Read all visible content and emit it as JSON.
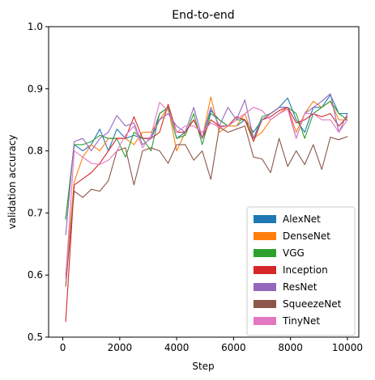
{
  "chart_data": {
    "type": "line",
    "title": "End-to-end",
    "xlabel": "Step",
    "ylabel": "validation accuracy",
    "xlim": [
      -500,
      10400
    ],
    "ylim": [
      0.5,
      1.0
    ],
    "xticks": [
      0,
      2000,
      4000,
      6000,
      8000,
      10000
    ],
    "yticks": [
      0.5,
      0.6,
      0.7,
      0.8,
      0.9,
      1.0
    ],
    "ytick_labels": [
      "0.5",
      "0.6",
      "0.7",
      "0.8",
      "0.9",
      "1.0"
    ],
    "grid": false,
    "legend_position": "lower-right",
    "x": [
      100,
      400,
      700,
      1000,
      1300,
      1600,
      1900,
      2200,
      2500,
      2800,
      3100,
      3400,
      3700,
      4000,
      4300,
      4600,
      4900,
      5200,
      5500,
      5800,
      6100,
      6400,
      6700,
      7000,
      7300,
      7600,
      7900,
      8200,
      8500,
      8800,
      9100,
      9400,
      9700,
      10000
    ],
    "series": [
      {
        "name": "AlexNet",
        "color": "#1f77b4",
        "values": [
          0.69,
          0.81,
          0.8,
          0.81,
          0.835,
          0.8,
          0.835,
          0.82,
          0.825,
          0.82,
          0.82,
          0.86,
          0.87,
          0.82,
          0.83,
          0.85,
          0.82,
          0.865,
          0.85,
          0.84,
          0.84,
          0.85,
          0.83,
          0.85,
          0.86,
          0.87,
          0.885,
          0.85,
          0.83,
          0.87,
          0.87,
          0.89,
          0.86,
          0.86
        ]
      },
      {
        "name": "DenseNet",
        "color": "#ff7f0e",
        "values": [
          0.6,
          0.75,
          0.79,
          0.81,
          0.8,
          0.82,
          0.82,
          0.82,
          0.81,
          0.83,
          0.83,
          0.85,
          0.87,
          0.8,
          0.83,
          0.85,
          0.82,
          0.887,
          0.83,
          0.84,
          0.84,
          0.86,
          0.82,
          0.83,
          0.85,
          0.86,
          0.87,
          0.83,
          0.86,
          0.88,
          0.87,
          0.88,
          0.85,
          0.85
        ]
      },
      {
        "name": "VGG",
        "color": "#2ca02c",
        "values": [
          0.69,
          0.81,
          0.81,
          0.815,
          0.825,
          0.82,
          0.82,
          0.79,
          0.83,
          0.82,
          0.8,
          0.86,
          0.87,
          0.82,
          0.825,
          0.86,
          0.81,
          0.86,
          0.85,
          0.84,
          0.85,
          0.85,
          0.82,
          0.855,
          0.86,
          0.87,
          0.87,
          0.86,
          0.82,
          0.86,
          0.87,
          0.88,
          0.86,
          0.85
        ]
      },
      {
        "name": "Inception",
        "color": "#d62728",
        "values": [
          0.525,
          0.745,
          0.755,
          0.765,
          0.78,
          0.8,
          0.82,
          0.82,
          0.855,
          0.82,
          0.82,
          0.83,
          0.875,
          0.83,
          0.83,
          0.85,
          0.82,
          0.85,
          0.84,
          0.84,
          0.855,
          0.85,
          0.815,
          0.85,
          0.855,
          0.865,
          0.87,
          0.845,
          0.85,
          0.86,
          0.855,
          0.86,
          0.84,
          0.855
        ]
      },
      {
        "name": "ResNet",
        "color": "#9467bd",
        "values": [
          0.665,
          0.815,
          0.82,
          0.8,
          0.82,
          0.83,
          0.857,
          0.84,
          0.845,
          0.81,
          0.82,
          0.85,
          0.86,
          0.84,
          0.83,
          0.87,
          0.82,
          0.87,
          0.84,
          0.87,
          0.85,
          0.882,
          0.82,
          0.85,
          0.86,
          0.87,
          0.87,
          0.82,
          0.86,
          0.87,
          0.88,
          0.892,
          0.83,
          0.86
        ]
      },
      {
        "name": "SqueezeNet",
        "color": "#8c564b",
        "values": [
          0.582,
          0.735,
          0.725,
          0.738,
          0.735,
          0.752,
          0.8,
          0.805,
          0.745,
          0.8,
          0.805,
          0.8,
          0.78,
          0.81,
          0.81,
          0.785,
          0.8,
          0.754,
          0.838,
          0.83,
          0.835,
          0.84,
          0.79,
          0.787,
          0.765,
          0.82,
          0.775,
          0.8,
          0.778,
          0.81,
          0.77,
          0.822,
          0.818,
          0.823
        ]
      },
      {
        "name": "TinyNet",
        "color": "#e377c2",
        "values": [
          0.595,
          0.8,
          0.79,
          0.78,
          0.778,
          0.785,
          0.8,
          0.825,
          0.84,
          0.805,
          0.825,
          0.878,
          0.865,
          0.83,
          0.84,
          0.84,
          0.83,
          0.845,
          0.838,
          0.84,
          0.85,
          0.86,
          0.87,
          0.865,
          0.85,
          0.86,
          0.867,
          0.82,
          0.86,
          0.86,
          0.85,
          0.85,
          0.83,
          0.85
        ]
      }
    ]
  }
}
